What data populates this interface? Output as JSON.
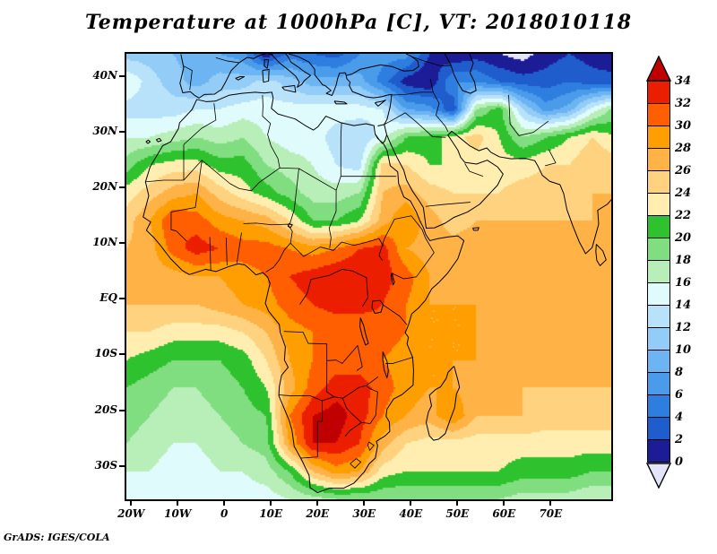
{
  "title": "Temperature at 1000hPa [C], VT: 2018010118",
  "attribution": "GrADS: IGES/COLA",
  "axes": {
    "lat_ticks": [
      {
        "label": "40N",
        "value": 40
      },
      {
        "label": "30N",
        "value": 30
      },
      {
        "label": "20N",
        "value": 20
      },
      {
        "label": "10N",
        "value": 10
      },
      {
        "label": "EQ",
        "value": 0
      },
      {
        "label": "10S",
        "value": -10
      },
      {
        "label": "20S",
        "value": -20
      },
      {
        "label": "30S",
        "value": -30
      }
    ],
    "lon_ticks": [
      {
        "label": "20W",
        "value": -20
      },
      {
        "label": "10W",
        "value": -10
      },
      {
        "label": "0",
        "value": 0
      },
      {
        "label": "10E",
        "value": 10
      },
      {
        "label": "20E",
        "value": 20
      },
      {
        "label": "30E",
        "value": 30
      },
      {
        "label": "40E",
        "value": 40
      },
      {
        "label": "50E",
        "value": 50
      },
      {
        "label": "60E",
        "value": 60
      },
      {
        "label": "70E",
        "value": 70
      }
    ]
  },
  "colorbar": {
    "tick_labels": [
      "34",
      "32",
      "30",
      "28",
      "26",
      "24",
      "22",
      "20",
      "18",
      "16",
      "14",
      "12",
      "10",
      "8",
      "6",
      "4",
      "2",
      "0"
    ],
    "above_range": ">34",
    "below_range": "<0",
    "cell_ranges_top_to_bottom": [
      "32-34",
      "30-32",
      "28-30",
      "26-28",
      "24-26",
      "22-24",
      "20-22",
      "18-20",
      "16-18",
      "14-16",
      "12-14",
      "10-12",
      "8-10",
      "6-8",
      "4-6",
      "2-4",
      "0-2"
    ]
  },
  "chart_data": {
    "type": "heatmap",
    "title": "Temperature at 1000hPa [C], VT: 2018010118",
    "variable": "Temperature",
    "pressure_level": "1000hPa",
    "units": "C",
    "valid_time": "2018010118",
    "lon_range": [
      -21,
      83
    ],
    "lat_range": [
      -36,
      44
    ],
    "contour_interval": 2,
    "levels": [
      0,
      2,
      4,
      6,
      8,
      10,
      12,
      14,
      16,
      18,
      20,
      22,
      24,
      26,
      28,
      30,
      32,
      34
    ],
    "palette": {
      "below": "#e4e4fb",
      "above": "#c00000",
      "colors_low_to_high": [
        "#1c1c96",
        "#1f5ccc",
        "#2e7ee0",
        "#4a9ceb",
        "#6cb5f2",
        "#92ccf7",
        "#b8e2fa",
        "#e0fbfb",
        "#b8efb8",
        "#80dd80",
        "#2ec22e",
        "#ffeeb0",
        "#ffd27f",
        "#ffb347",
        "#ff9e00",
        "#ff5f00",
        "#eb1e00"
      ]
    },
    "grid": {
      "lon_start": -21,
      "lon_step": 5,
      "lat_start": 44,
      "lat_step": -5,
      "ncols": 22,
      "nrows": 17
    },
    "values_north_to_south": [
      [
        11,
        11,
        10,
        9,
        8,
        7,
        0,
        5,
        4,
        3,
        6,
        7,
        7,
        2,
        0,
        1,
        0,
        -1,
        1,
        2,
        1,
        0
      ],
      [
        16,
        13,
        11,
        9,
        11,
        11,
        13,
        11,
        9,
        9,
        9,
        5,
        1,
        0,
        6,
        6,
        4,
        3,
        3,
        4,
        3,
        3
      ],
      [
        13,
        13,
        13,
        14,
        14,
        15,
        15,
        15,
        15,
        15,
        15,
        14,
        8,
        7,
        2,
        18,
        21,
        12,
        7,
        9,
        15,
        19
      ],
      [
        16,
        16,
        17,
        18,
        17,
        18,
        16,
        15,
        15,
        13,
        12,
        15,
        20,
        21,
        23,
        25,
        22,
        18,
        20,
        22,
        24,
        22
      ],
      [
        19,
        22,
        23,
        23,
        21,
        21,
        18,
        17,
        16,
        14,
        13,
        25,
        24,
        22,
        22,
        23,
        23,
        23,
        24,
        24,
        26,
        25
      ],
      [
        23,
        25,
        27,
        28,
        25,
        23,
        21,
        19,
        17,
        17,
        18,
        26,
        27,
        25,
        24,
        24,
        24,
        25,
        25,
        25,
        26,
        26
      ],
      [
        25,
        28,
        32,
        31,
        29,
        28,
        27,
        24,
        20,
        20,
        22,
        27,
        30,
        27,
        25,
        26,
        26,
        26,
        26,
        26,
        26,
        27
      ],
      [
        26,
        27,
        31,
        33,
        32,
        31,
        31,
        30,
        29,
        30,
        32,
        33,
        28,
        27,
        27,
        27,
        27,
        27,
        27,
        27,
        27,
        27
      ],
      [
        27,
        27,
        27,
        28,
        28,
        29,
        30,
        32,
        33,
        34,
        34,
        33,
        31,
        28,
        27,
        27,
        27,
        27,
        27,
        27,
        27,
        27
      ],
      [
        26,
        26,
        26,
        26,
        27,
        28,
        29,
        31,
        32,
        33,
        33,
        32,
        30,
        28,
        28,
        28,
        27,
        27,
        27,
        27,
        27,
        27
      ],
      [
        24,
        24,
        23,
        23,
        23,
        24,
        26,
        29,
        30,
        30,
        30,
        31,
        30,
        28,
        28,
        28,
        28,
        27,
        27,
        27,
        27,
        27
      ],
      [
        22,
        21,
        20,
        20,
        20,
        21,
        24,
        28,
        30,
        31,
        31,
        30,
        29,
        28,
        28,
        28,
        27,
        27,
        27,
        27,
        27,
        26
      ],
      [
        20,
        19,
        18,
        18,
        19,
        20,
        22,
        27,
        31,
        33,
        33,
        31,
        29,
        28,
        28,
        27,
        27,
        26,
        26,
        26,
        26,
        26
      ],
      [
        19,
        18,
        17,
        17,
        18,
        19,
        20,
        30,
        34,
        35,
        33,
        30,
        28,
        27,
        30,
        26,
        26,
        26,
        25,
        25,
        25,
        25
      ],
      [
        18,
        17,
        16,
        16,
        17,
        18,
        19,
        28,
        34,
        34,
        32,
        27,
        24,
        23,
        23,
        23,
        23,
        23,
        23,
        23,
        23,
        23
      ],
      [
        16,
        16,
        15,
        15,
        16,
        16,
        17,
        20,
        26,
        29,
        28,
        23,
        22,
        22,
        22,
        22,
        22,
        21,
        21,
        21,
        20,
        20
      ],
      [
        15,
        15,
        14,
        14,
        14,
        15,
        15,
        16,
        17,
        18,
        18,
        18,
        18,
        18,
        18,
        18,
        18,
        17,
        17,
        17,
        16,
        16
      ]
    ]
  }
}
